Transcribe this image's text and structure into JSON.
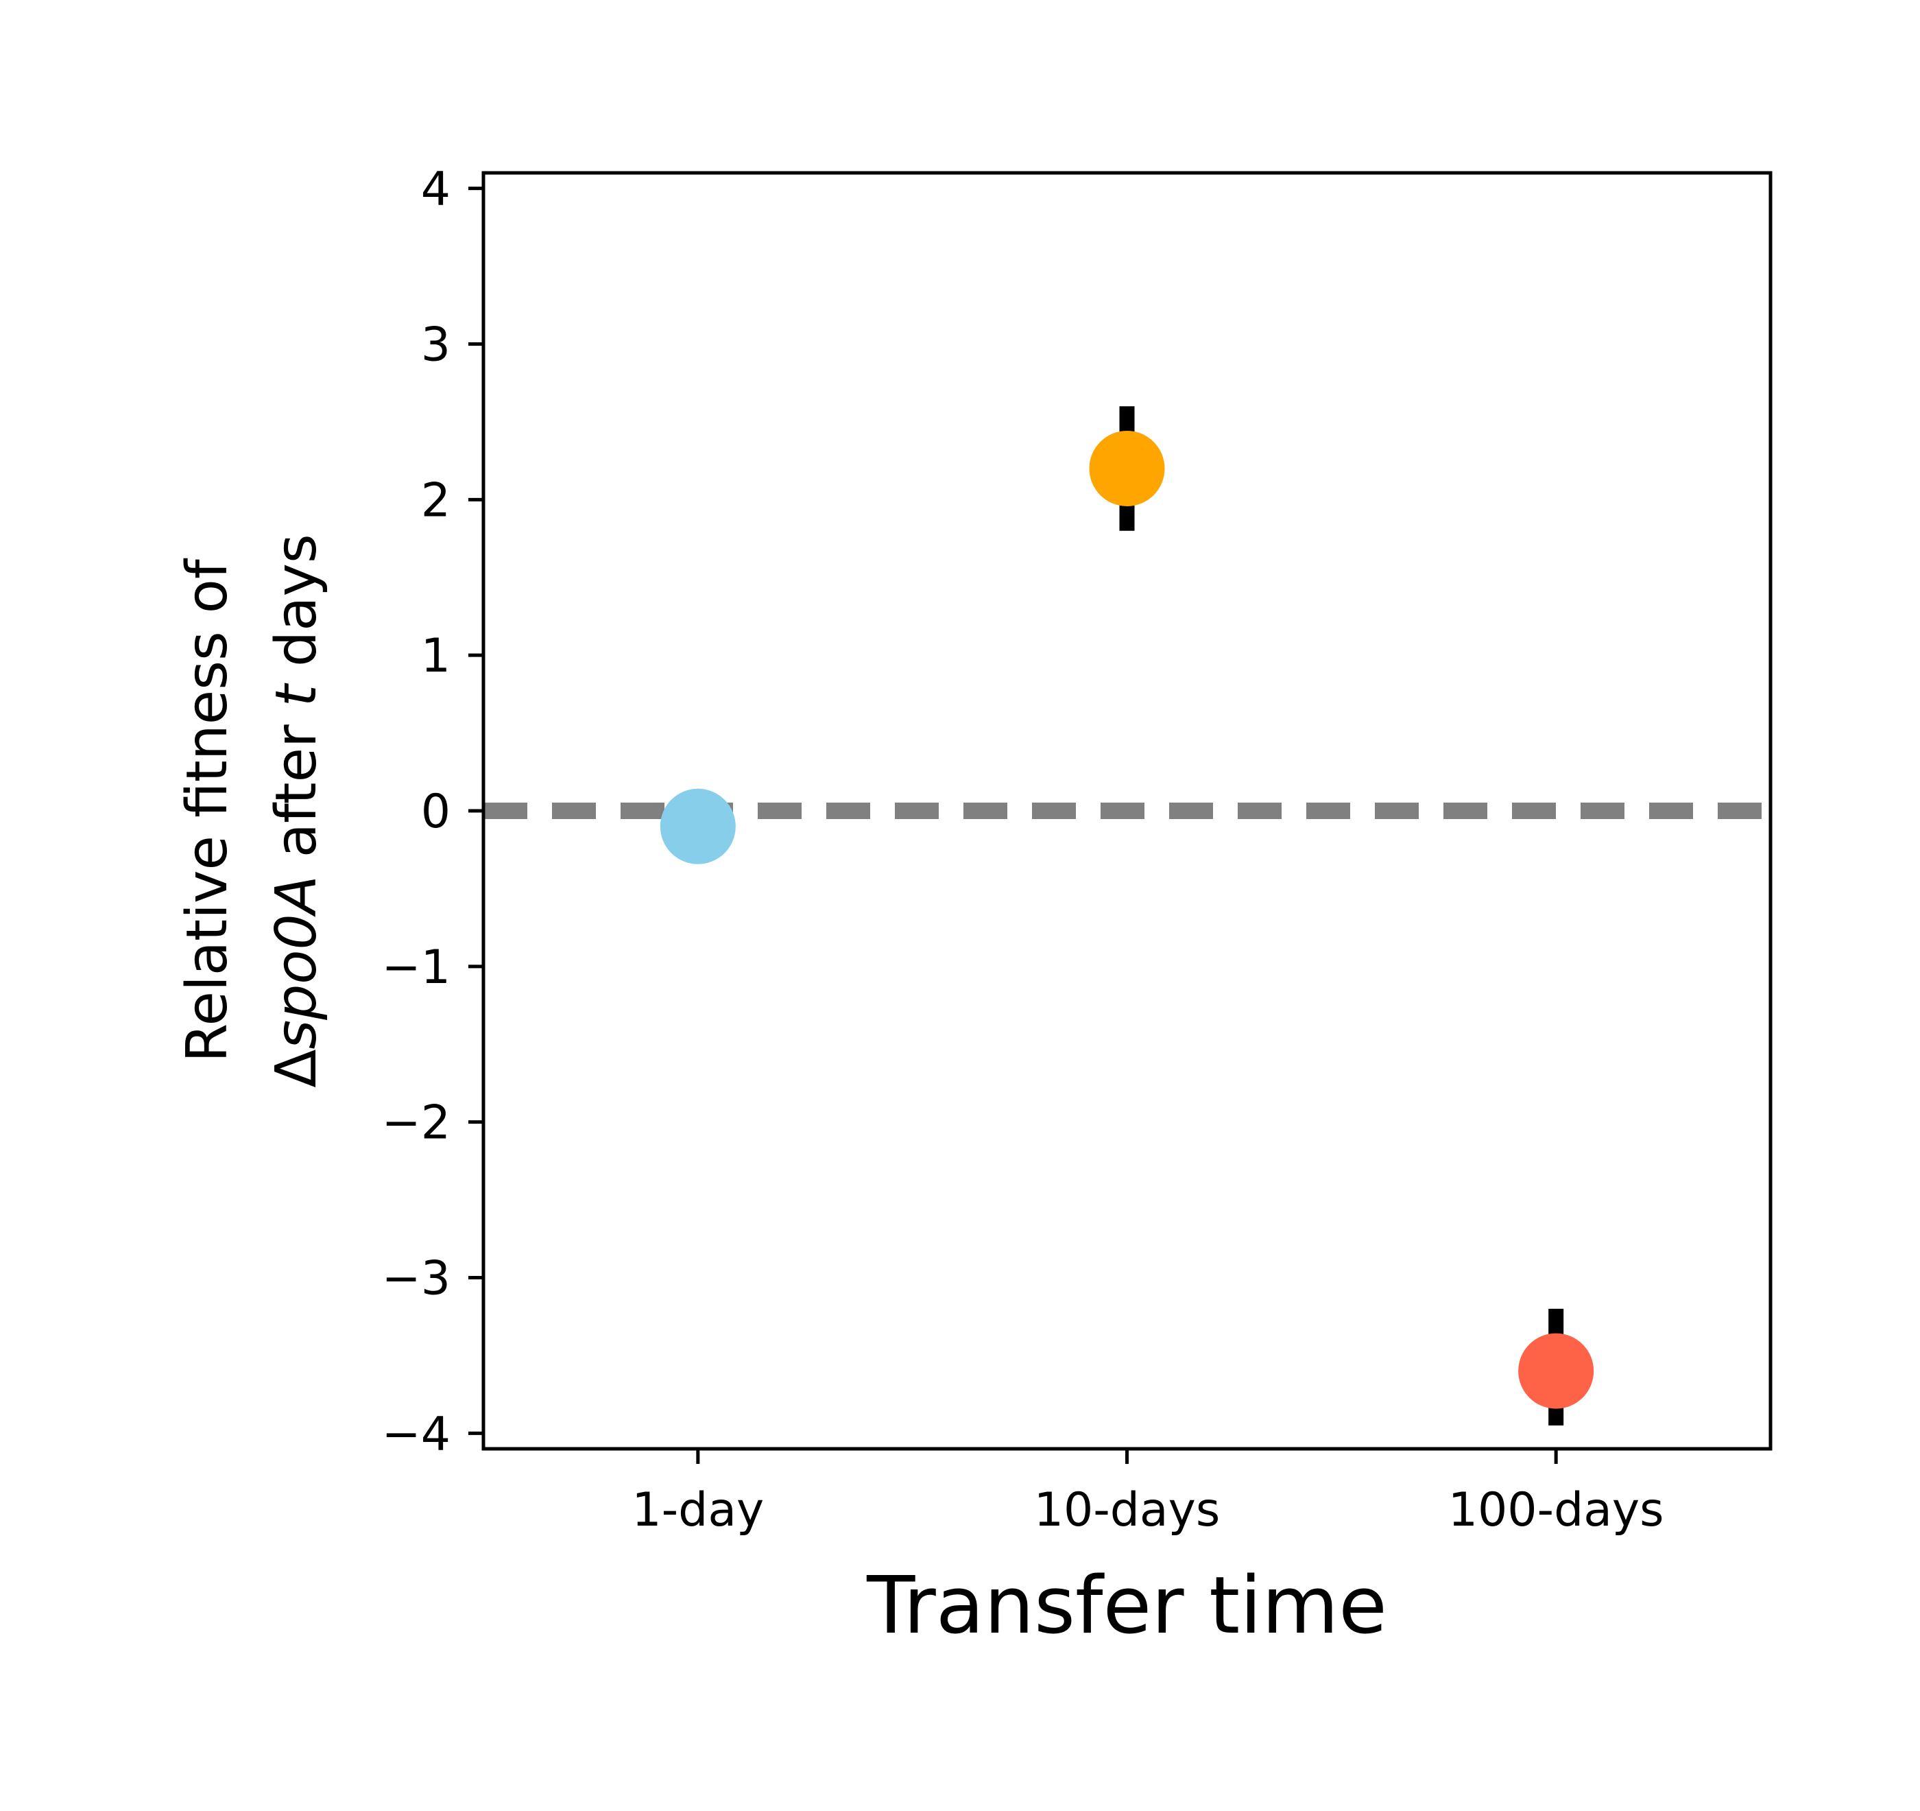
{
  "chart_data": {
    "type": "scatter",
    "categories": [
      "1-day",
      "10-days",
      "100-days"
    ],
    "values": [
      -0.1,
      2.2,
      -3.6
    ],
    "error_low": [
      -0.1,
      1.8,
      -3.95
    ],
    "error_high": [
      -0.1,
      2.6,
      -3.2
    ],
    "colors": [
      "#87CEEB",
      "#FFA500",
      "#FF6347"
    ],
    "xlabel": "Transfer time",
    "ylabel": {
      "line1": "Relative fitness of",
      "line2_prefix": "Δ",
      "line2_gene": "spo0A",
      "line2_mid": " after ",
      "line2_var": "t",
      "line2_suffix": " days"
    },
    "ylim": [
      -4.1,
      4.1
    ],
    "yticks": [
      {
        "value": 4,
        "label": "4"
      },
      {
        "value": 3,
        "label": "3"
      },
      {
        "value": 2,
        "label": "2"
      },
      {
        "value": 1,
        "label": "1"
      },
      {
        "value": 0,
        "label": "0"
      },
      {
        "value": -1,
        "label": "−1"
      },
      {
        "value": -2,
        "label": "−2"
      },
      {
        "value": -3,
        "label": "−3"
      },
      {
        "value": -4,
        "label": "−4"
      }
    ],
    "reference_line": {
      "y": 0,
      "style": "dashed",
      "color": "#808080"
    },
    "error_bar_color": "#000000",
    "grid": false,
    "legend": "none"
  }
}
